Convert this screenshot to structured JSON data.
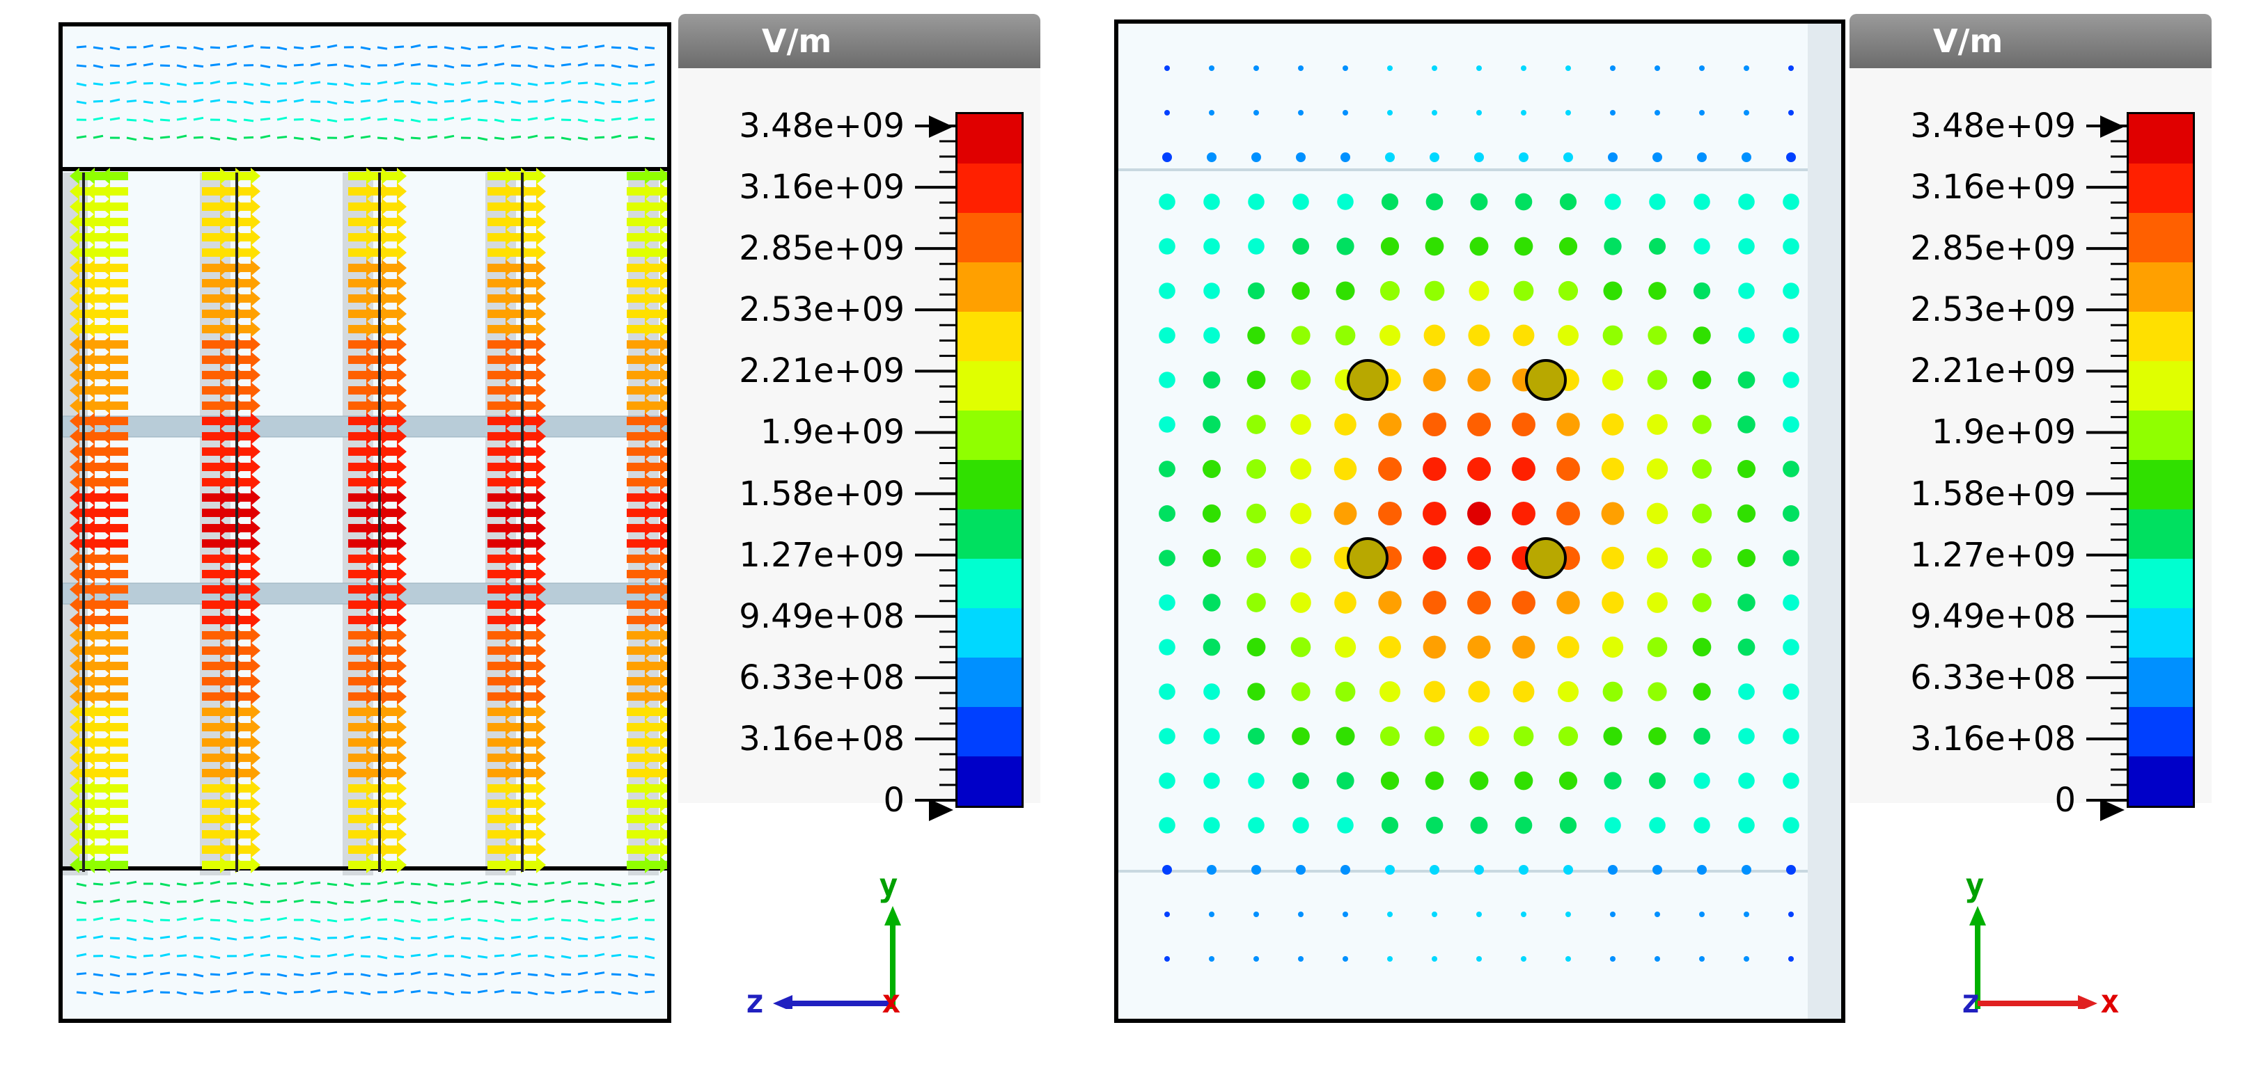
{
  "panels": [
    {
      "id": "left",
      "view": "cross-section-zy",
      "legend": {
        "unit": "V/m",
        "ticks": [
          "3.48e+09",
          "3.16e+09",
          "2.85e+09",
          "2.53e+09",
          "2.21e+09",
          "1.9e+09",
          "1.58e+09",
          "1.27e+09",
          "9.49e+08",
          "6.33e+08",
          "3.16e+08",
          "0"
        ]
      },
      "axes": {
        "horizontal": "z",
        "vertical": "y",
        "out_of_plane": "x"
      }
    },
    {
      "id": "right",
      "view": "cross-section-xy",
      "legend": {
        "unit": "V/m",
        "ticks": [
          "3.48e+09",
          "3.16e+09",
          "2.85e+09",
          "2.53e+09",
          "2.21e+09",
          "1.9e+09",
          "1.58e+09",
          "1.27e+09",
          "9.49e+08",
          "6.33e+08",
          "3.16e+08",
          "0"
        ]
      },
      "axes": {
        "horizontal": "x",
        "vertical": "y",
        "out_of_plane": "z"
      }
    }
  ],
  "colorscale": [
    "#0000c8",
    "#0040ff",
    "#0090ff",
    "#00d8ff",
    "#00ffd0",
    "#00e060",
    "#30e000",
    "#90ff00",
    "#e0ff00",
    "#ffe000",
    "#ffa000",
    "#ff6000",
    "#ff2000",
    "#e00000"
  ],
  "colors": {
    "frame": "#000000",
    "background": "#f4fafd"
  }
}
